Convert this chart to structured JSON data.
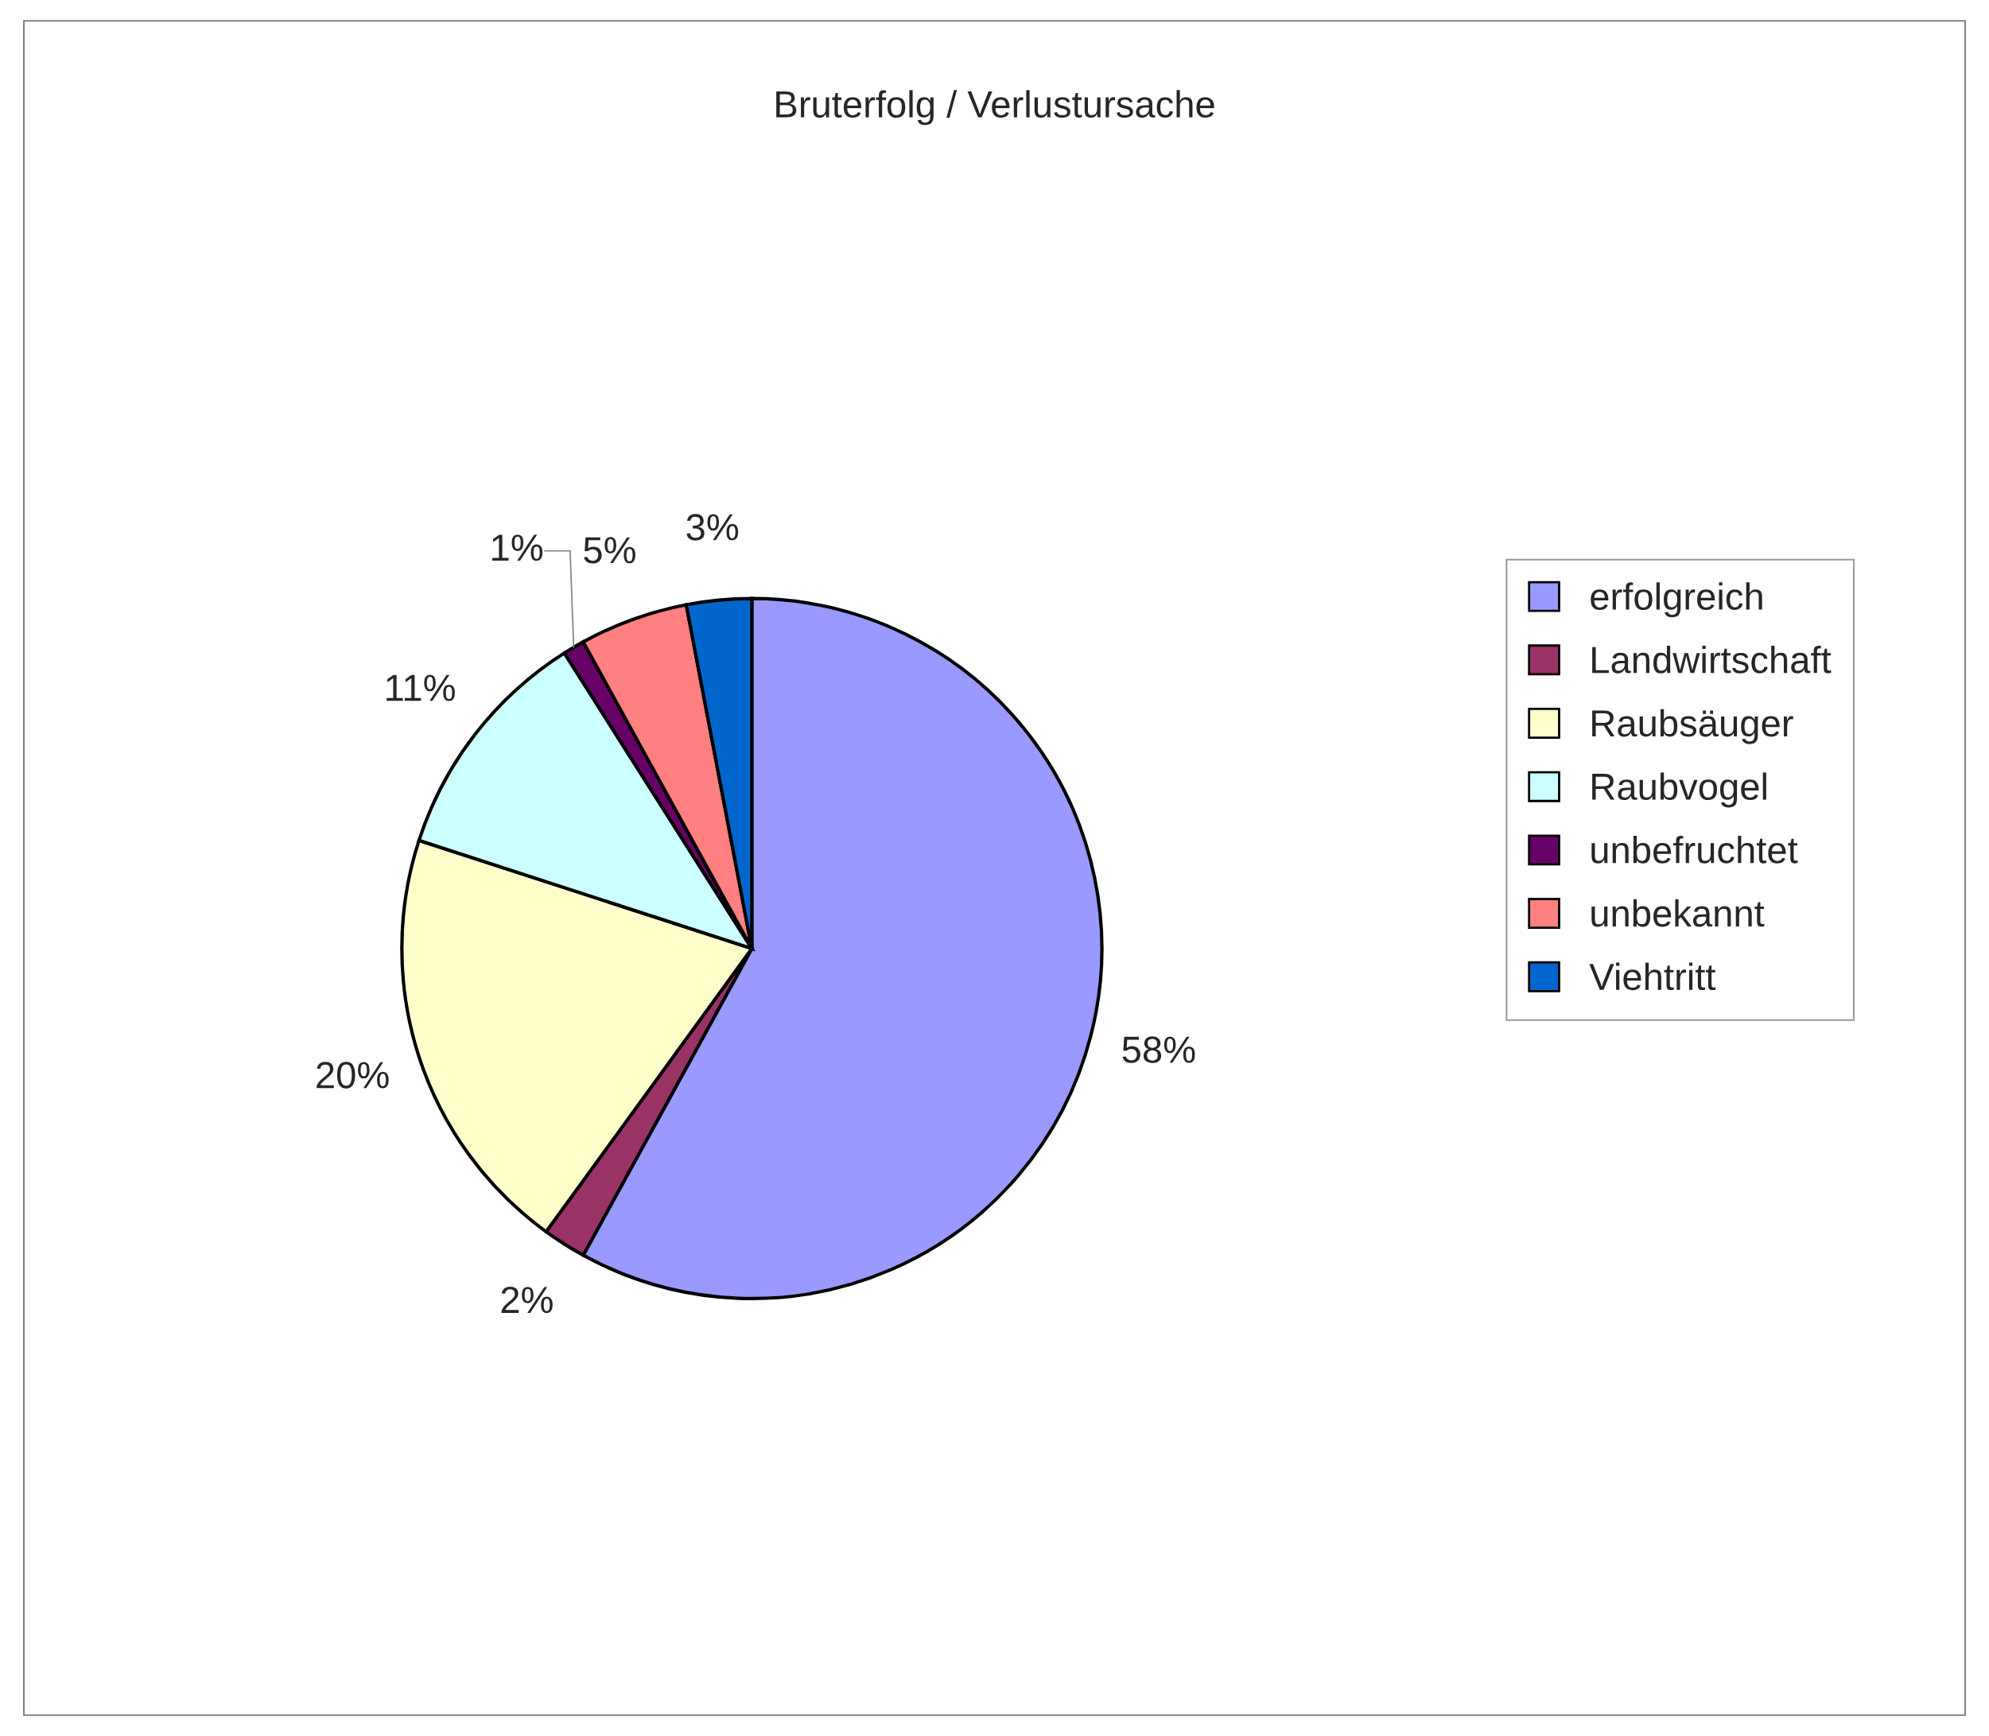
{
  "chart_data": {
    "type": "pie",
    "title": "Bruterfolg / Verlustursache",
    "categories": [
      "erfolgreich",
      "Landwirtschaft",
      "Raubsäuger",
      "Raubvogel",
      "unbefruchtet",
      "unbekannt",
      "Viehtritt"
    ],
    "values": [
      58,
      2,
      20,
      11,
      1,
      5,
      3
    ],
    "colors": [
      "#9999ff",
      "#993366",
      "#ffffcc",
      "#ccffff",
      "#660066",
      "#ff8080",
      "#0066cc"
    ],
    "value_labels": [
      "58%",
      "2%",
      "20%",
      "11%",
      "1%",
      "5%",
      "3%"
    ],
    "legend": "right"
  }
}
